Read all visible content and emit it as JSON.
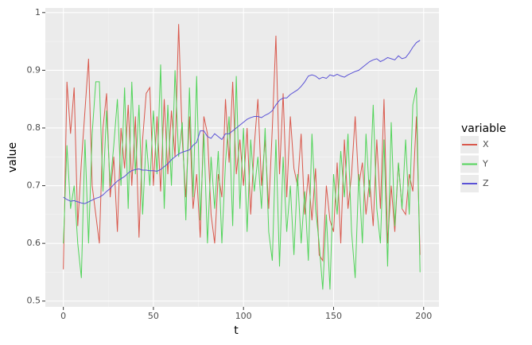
{
  "chart_data": {
    "type": "line",
    "x_label": "t",
    "y_label": "value",
    "x": [
      0,
      2,
      4,
      6,
      8,
      10,
      12,
      14,
      16,
      18,
      20,
      22,
      24,
      26,
      28,
      30,
      32,
      34,
      36,
      38,
      40,
      42,
      44,
      46,
      48,
      50,
      52,
      54,
      56,
      58,
      60,
      62,
      64,
      66,
      68,
      70,
      72,
      74,
      76,
      78,
      80,
      82,
      84,
      86,
      88,
      90,
      92,
      94,
      96,
      98,
      100,
      102,
      104,
      106,
      108,
      110,
      112,
      114,
      116,
      118,
      120,
      122,
      124,
      126,
      128,
      130,
      132,
      134,
      136,
      138,
      140,
      142,
      144,
      146,
      148,
      150,
      152,
      154,
      156,
      158,
      160,
      162,
      164,
      166,
      168,
      170,
      172,
      174,
      176,
      178,
      180,
      182,
      184,
      186,
      188,
      190,
      192,
      194,
      196,
      198
    ],
    "legend_title": "variable",
    "series": [
      {
        "name": "X",
        "color": "#d9584c",
        "values": [
          0.555,
          0.88,
          0.79,
          0.87,
          0.63,
          0.74,
          0.83,
          0.92,
          0.7,
          0.65,
          0.6,
          0.8,
          0.86,
          0.68,
          0.75,
          0.62,
          0.8,
          0.73,
          0.84,
          0.7,
          0.82,
          0.61,
          0.78,
          0.86,
          0.87,
          0.7,
          0.82,
          0.69,
          0.85,
          0.72,
          0.83,
          0.75,
          0.98,
          0.78,
          0.68,
          0.82,
          0.66,
          0.72,
          0.61,
          0.82,
          0.79,
          0.65,
          0.6,
          0.72,
          0.68,
          0.85,
          0.74,
          0.88,
          0.72,
          0.78,
          0.7,
          0.8,
          0.65,
          0.77,
          0.85,
          0.7,
          0.78,
          0.66,
          0.8,
          0.96,
          0.72,
          0.86,
          0.68,
          0.82,
          0.73,
          0.7,
          0.79,
          0.65,
          0.72,
          0.64,
          0.73,
          0.58,
          0.57,
          0.7,
          0.64,
          0.62,
          0.74,
          0.6,
          0.78,
          0.66,
          0.72,
          0.82,
          0.7,
          0.74,
          0.65,
          0.71,
          0.63,
          0.78,
          0.66,
          0.85,
          0.6,
          0.7,
          0.62,
          0.74,
          0.66,
          0.65,
          0.72,
          0.69,
          0.82,
          0.58
        ]
      },
      {
        "name": "Y",
        "color": "#52d45a",
        "values": [
          0.6,
          0.77,
          0.66,
          0.7,
          0.6,
          0.54,
          0.78,
          0.6,
          0.79,
          0.88,
          0.88,
          0.69,
          0.83,
          0.7,
          0.77,
          0.85,
          0.7,
          0.87,
          0.66,
          0.88,
          0.72,
          0.84,
          0.65,
          0.78,
          0.7,
          0.83,
          0.72,
          0.91,
          0.66,
          0.84,
          0.7,
          0.9,
          0.75,
          0.81,
          0.64,
          0.87,
          0.68,
          0.89,
          0.64,
          0.79,
          0.6,
          0.75,
          0.66,
          0.76,
          0.6,
          0.74,
          0.82,
          0.63,
          0.89,
          0.66,
          0.8,
          0.62,
          0.78,
          0.69,
          0.75,
          0.66,
          0.8,
          0.62,
          0.57,
          0.78,
          0.56,
          0.75,
          0.62,
          0.7,
          0.58,
          0.72,
          0.6,
          0.69,
          0.57,
          0.79,
          0.66,
          0.6,
          0.52,
          0.65,
          0.52,
          0.72,
          0.65,
          0.76,
          0.68,
          0.79,
          0.62,
          0.54,
          0.72,
          0.6,
          0.79,
          0.68,
          0.84,
          0.66,
          0.6,
          0.78,
          0.56,
          0.81,
          0.63,
          0.74,
          0.66,
          0.78,
          0.65,
          0.84,
          0.87,
          0.55
        ]
      },
      {
        "name": "Z",
        "color": "#5a52d6",
        "values": [
          0.68,
          0.676,
          0.673,
          0.674,
          0.672,
          0.67,
          0.669,
          0.672,
          0.675,
          0.678,
          0.68,
          0.684,
          0.69,
          0.695,
          0.702,
          0.708,
          0.712,
          0.716,
          0.722,
          0.726,
          0.728,
          0.729,
          0.727,
          0.727,
          0.726,
          0.726,
          0.725,
          0.728,
          0.733,
          0.738,
          0.745,
          0.75,
          0.755,
          0.758,
          0.76,
          0.762,
          0.77,
          0.775,
          0.795,
          0.795,
          0.785,
          0.782,
          0.79,
          0.785,
          0.78,
          0.79,
          0.79,
          0.795,
          0.8,
          0.805,
          0.81,
          0.815,
          0.818,
          0.82,
          0.82,
          0.818,
          0.822,
          0.825,
          0.83,
          0.84,
          0.848,
          0.852,
          0.852,
          0.858,
          0.862,
          0.866,
          0.872,
          0.88,
          0.89,
          0.892,
          0.89,
          0.885,
          0.888,
          0.886,
          0.892,
          0.89,
          0.893,
          0.89,
          0.888,
          0.892,
          0.895,
          0.898,
          0.9,
          0.905,
          0.91,
          0.915,
          0.918,
          0.92,
          0.915,
          0.918,
          0.922,
          0.92,
          0.918,
          0.925,
          0.92,
          0.922,
          0.93,
          0.94,
          0.948,
          0.952
        ]
      }
    ],
    "xlim": [
      -10,
      208.5
    ],
    "ylim": [
      0.49,
      1.008
    ],
    "xticks": [
      0,
      50,
      100,
      150,
      200
    ],
    "yticks": [
      0.5,
      0.6,
      0.7,
      0.8,
      0.9,
      1
    ],
    "grid": true
  }
}
